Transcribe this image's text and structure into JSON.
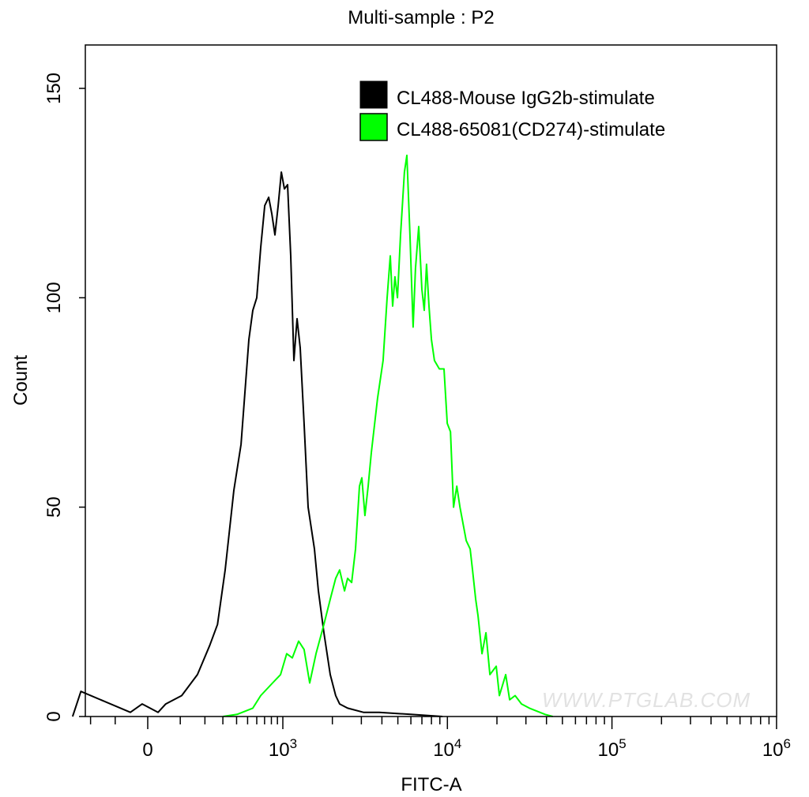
{
  "chart_data": {
    "type": "line",
    "title": "Multi-sample : P2",
    "xlabel": "FITC-A",
    "ylabel": "Count",
    "x_scale": "biexponential",
    "ylim": [
      0,
      160
    ],
    "grid": false,
    "legend_position": "top-right",
    "x_ticks": [
      {
        "value": 0,
        "base": "0",
        "exp": ""
      },
      {
        "value": 1000,
        "base": "10",
        "exp": "3"
      },
      {
        "value": 10000,
        "base": "10",
        "exp": "4"
      },
      {
        "value": 100000,
        "base": "10",
        "exp": "5"
      },
      {
        "value": 1000000,
        "base": "10",
        "exp": "6"
      }
    ],
    "y_ticks": [
      "0",
      "50",
      "100",
      "150"
    ],
    "watermark": "WWW.PTGLAB.COM",
    "series": [
      {
        "name": "CL488-Mouse IgG2b-stimulate",
        "color": "#000000",
        "x": [
          -300,
          -250,
          -51,
          -16,
          30,
          53,
          105,
          166,
          224,
          267,
          315,
          378,
          438,
          513,
          555,
          600,
          649,
          702,
          759,
          807,
          858,
          913,
          971,
          1022,
          1069,
          1117,
          1167,
          1220,
          1275,
          1347,
          1424,
          1556,
          1644,
          1777,
          1941,
          2096,
          2215,
          2475,
          3088,
          3850,
          5990,
          9340
        ],
        "y": [
          0,
          6,
          1,
          3,
          1,
          3,
          5,
          10,
          17,
          22,
          35,
          54,
          65,
          90,
          97,
          100,
          112,
          122,
          124,
          120,
          115,
          122,
          130,
          126,
          127,
          110,
          85,
          95,
          88,
          70,
          50,
          40,
          30,
          20,
          10,
          5,
          3,
          2,
          1,
          1,
          0.5,
          0
        ]
      },
      {
        "name": "CL488-65081(CD274)-stimulate",
        "color": "#00ff00",
        "x": [
          300,
          404,
          555,
          649,
          819,
          956,
          1056,
          1142,
          1247,
          1347,
          1456,
          1591,
          1777,
          1941,
          2096,
          2215,
          2370,
          2475,
          2618,
          2766,
          2923,
          3022,
          3155,
          3300,
          3450,
          3765,
          4065,
          4300,
          4495,
          4650,
          4800,
          4970,
          5190,
          5480,
          5670,
          5920,
          6190,
          6400,
          6695,
          7000,
          7230,
          7470,
          7730,
          7995,
          8345,
          8930,
          9540,
          9980,
          10440,
          10900,
          11400,
          11920,
          13010,
          13750,
          14210,
          14850,
          15350,
          16220,
          17150,
          18130,
          19810,
          20700,
          22600,
          23900,
          25800,
          28200,
          31500,
          39200,
          43700
        ],
        "y": [
          0,
          0.5,
          2,
          5,
          8,
          10,
          15,
          14,
          18,
          16,
          8,
          15,
          22,
          28,
          33,
          35,
          30,
          33,
          32,
          40,
          55,
          57,
          48,
          55,
          63,
          76,
          85,
          100,
          110,
          98,
          105,
          100,
          115,
          130,
          134,
          115,
          93,
          107,
          117,
          102,
          97,
          108,
          98,
          90,
          85,
          83,
          83,
          70,
          68,
          50,
          55,
          50,
          42,
          40,
          35,
          28,
          24,
          15,
          20,
          10,
          12,
          5,
          10,
          4,
          5,
          3,
          2,
          0.5,
          0
        ]
      }
    ]
  }
}
